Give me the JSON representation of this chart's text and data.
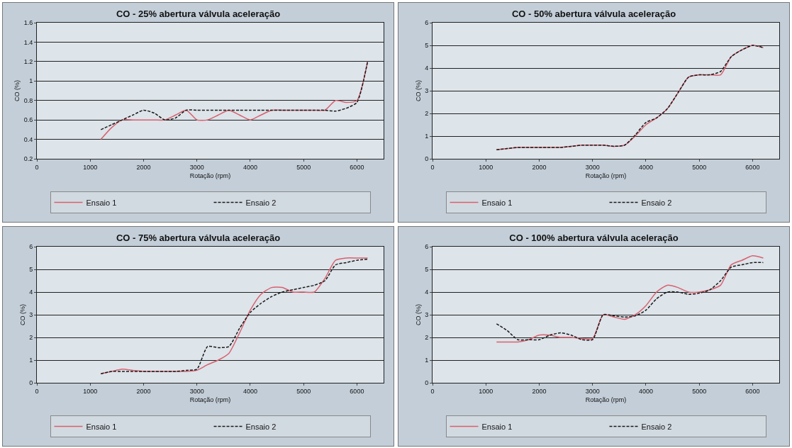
{
  "chart_data": [
    {
      "type": "line",
      "title": "CO - 25% abertura válvula aceleração",
      "xlabel": "Rotação (rpm)",
      "ylabel": "CO (%)",
      "grid": "y",
      "legend": "bottom",
      "marker": "none",
      "xlim": [
        0,
        6500
      ],
      "xticks": [
        0,
        1000,
        2000,
        3000,
        4000,
        5000,
        6000
      ],
      "ylim": [
        0.2,
        1.6
      ],
      "yticks": [
        0.2,
        0.4,
        0.6,
        0.8,
        1,
        1.2,
        1.4,
        1.6
      ],
      "x": [
        1200,
        1400,
        1600,
        1800,
        2000,
        2200,
        2400,
        2600,
        2800,
        3000,
        3200,
        3400,
        3600,
        3800,
        4000,
        4200,
        4400,
        4600,
        4800,
        5000,
        5200,
        5400,
        5600,
        5800,
        6000,
        6200
      ],
      "series": [
        {
          "name": "Ensaio 1",
          "color": "#d9606e",
          "line_style": "solid",
          "values": [
            0.4,
            0.52,
            0.6,
            0.6,
            0.6,
            0.6,
            0.6,
            0.65,
            0.7,
            0.6,
            0.6,
            0.65,
            0.7,
            0.65,
            0.6,
            0.65,
            0.7,
            0.7,
            0.7,
            0.7,
            0.7,
            0.7,
            0.8,
            0.78,
            0.8,
            1.2
          ]
        },
        {
          "name": "Ensaio 2",
          "color": "#1a1a1a",
          "line_style": "dashed",
          "values": [
            0.5,
            0.55,
            0.6,
            0.65,
            0.7,
            0.67,
            0.6,
            0.62,
            0.7,
            0.7,
            0.7,
            0.7,
            0.7,
            0.7,
            0.7,
            0.7,
            0.7,
            0.7,
            0.7,
            0.7,
            0.7,
            0.7,
            0.69,
            0.72,
            0.78,
            1.2
          ]
        }
      ]
    },
    {
      "type": "line",
      "title": "CO - 50% abertura válvula aceleração",
      "xlabel": "Rotação (rpm)",
      "ylabel": "CO (%)",
      "grid": "y",
      "legend": "bottom",
      "marker": "none",
      "xlim": [
        0,
        6500
      ],
      "xticks": [
        0,
        1000,
        2000,
        3000,
        4000,
        5000,
        6000
      ],
      "ylim": [
        0,
        6
      ],
      "yticks": [
        0,
        1,
        2,
        3,
        4,
        5,
        6
      ],
      "x": [
        1200,
        1400,
        1600,
        1800,
        2000,
        2200,
        2400,
        2600,
        2800,
        3000,
        3200,
        3400,
        3600,
        3800,
        4000,
        4200,
        4400,
        4600,
        4800,
        5000,
        5200,
        5400,
        5600,
        5800,
        6000,
        6200
      ],
      "series": [
        {
          "name": "Ensaio 1",
          "color": "#d9606e",
          "line_style": "solid",
          "values": [
            0.4,
            0.45,
            0.5,
            0.5,
            0.5,
            0.5,
            0.5,
            0.55,
            0.6,
            0.6,
            0.6,
            0.55,
            0.6,
            1.0,
            1.5,
            1.8,
            2.2,
            2.9,
            3.6,
            3.7,
            3.7,
            3.7,
            4.5,
            4.8,
            5.0,
            4.9
          ]
        },
        {
          "name": "Ensaio 2",
          "color": "#1a1a1a",
          "line_style": "dashed",
          "values": [
            0.4,
            0.45,
            0.5,
            0.5,
            0.5,
            0.5,
            0.5,
            0.55,
            0.6,
            0.6,
            0.6,
            0.55,
            0.6,
            1.05,
            1.6,
            1.8,
            2.2,
            2.9,
            3.6,
            3.7,
            3.7,
            3.85,
            4.5,
            4.8,
            5.0,
            4.9
          ]
        }
      ]
    },
    {
      "type": "line",
      "title": "CO - 75% abertura válvula aceleração",
      "xlabel": "Rotação (rpm)",
      "ylabel": "CO (%)",
      "grid": "y",
      "legend": "bottom",
      "marker": "none",
      "xlim": [
        0,
        6500
      ],
      "xticks": [
        0,
        1000,
        2000,
        3000,
        4000,
        5000,
        6000
      ],
      "ylim": [
        0,
        6
      ],
      "yticks": [
        0,
        1,
        2,
        3,
        4,
        5,
        6
      ],
      "x": [
        1200,
        1400,
        1600,
        1800,
        2000,
        2200,
        2400,
        2600,
        2800,
        3000,
        3200,
        3400,
        3600,
        3800,
        4000,
        4200,
        4400,
        4600,
        4800,
        5000,
        5200,
        5400,
        5600,
        5800,
        6000,
        6200
      ],
      "series": [
        {
          "name": "Ensaio 1",
          "color": "#d9606e",
          "line_style": "solid",
          "values": [
            0.4,
            0.5,
            0.6,
            0.55,
            0.5,
            0.5,
            0.5,
            0.5,
            0.5,
            0.55,
            0.8,
            1.0,
            1.3,
            2.2,
            3.2,
            3.9,
            4.2,
            4.2,
            4.0,
            4.0,
            4.0,
            4.6,
            5.4,
            5.5,
            5.5,
            5.5
          ]
        },
        {
          "name": "Ensaio 2",
          "color": "#1a1a1a",
          "line_style": "dashed",
          "values": [
            0.4,
            0.5,
            0.5,
            0.5,
            0.5,
            0.5,
            0.5,
            0.5,
            0.55,
            0.6,
            1.6,
            1.55,
            1.6,
            2.4,
            3.1,
            3.5,
            3.8,
            4.0,
            4.1,
            4.2,
            4.3,
            4.5,
            5.2,
            5.3,
            5.4,
            5.45
          ]
        }
      ]
    },
    {
      "type": "line",
      "title": "CO - 100% abertura válvula aceleração",
      "xlabel": "Rotação (rpm)",
      "ylabel": "CO (%)",
      "grid": "y",
      "legend": "bottom",
      "marker": "none",
      "xlim": [
        0,
        6500
      ],
      "xticks": [
        0,
        1000,
        2000,
        3000,
        4000,
        5000,
        6000
      ],
      "ylim": [
        0,
        6
      ],
      "yticks": [
        0,
        1,
        2,
        3,
        4,
        5,
        6
      ],
      "x": [
        1200,
        1400,
        1600,
        1800,
        2000,
        2200,
        2400,
        2600,
        2800,
        3000,
        3200,
        3400,
        3600,
        3800,
        4000,
        4200,
        4400,
        4600,
        4800,
        5000,
        5200,
        5400,
        5600,
        5800,
        6000,
        6200
      ],
      "series": [
        {
          "name": "Ensaio 1",
          "color": "#d9606e",
          "line_style": "solid",
          "values": [
            1.8,
            1.8,
            1.8,
            1.9,
            2.1,
            2.1,
            2.0,
            2.0,
            1.95,
            1.95,
            3.0,
            2.9,
            2.8,
            3.0,
            3.4,
            4.0,
            4.3,
            4.2,
            4.0,
            4.0,
            4.1,
            4.3,
            5.2,
            5.4,
            5.6,
            5.5
          ]
        },
        {
          "name": "Ensaio 2",
          "color": "#1a1a1a",
          "line_style": "dashed",
          "values": [
            2.6,
            2.3,
            1.9,
            1.9,
            1.9,
            2.1,
            2.2,
            2.1,
            1.9,
            1.9,
            3.0,
            2.95,
            2.9,
            2.95,
            3.2,
            3.7,
            4.0,
            4.0,
            3.9,
            3.95,
            4.1,
            4.5,
            5.1,
            5.2,
            5.3,
            5.3
          ]
        }
      ]
    }
  ]
}
